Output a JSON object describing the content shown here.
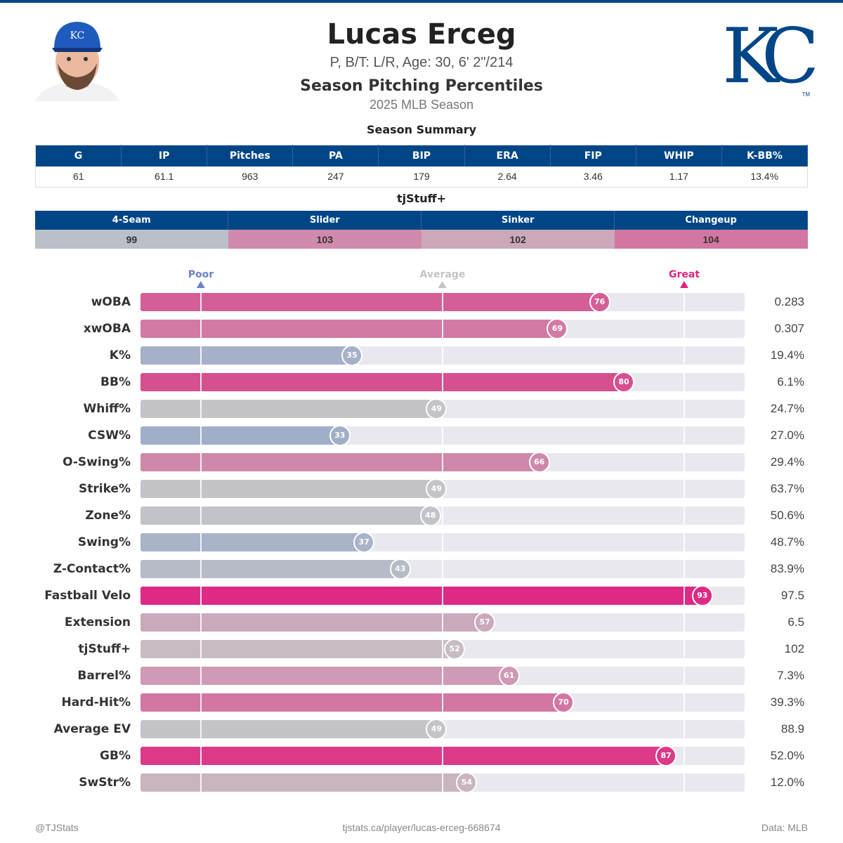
{
  "header": {
    "name": "Lucas Erceg",
    "bio": "P, B/T: L/R, Age: 30, 6' 2\"/214",
    "subtitle": "Season Pitching Percentiles",
    "season": "2025 MLB Season",
    "logo_text": "KC",
    "logo_tm": "TM"
  },
  "summary": {
    "title": "Season Summary",
    "headers": [
      "G",
      "IP",
      "Pitches",
      "PA",
      "BIP",
      "ERA",
      "FIP",
      "WHIP",
      "K-BB%"
    ],
    "values": [
      "61",
      "61.1",
      "963",
      "247",
      "179",
      "2.64",
      "3.46",
      "1.17",
      "13.4%"
    ]
  },
  "tjstuff": {
    "title": "tjStuff+",
    "headers": [
      "4-Seam",
      "Slider",
      "Sinker",
      "Changeup"
    ],
    "values": [
      "99",
      "103",
      "102",
      "104"
    ],
    "colors": [
      "#babfc8",
      "#d08aab",
      "#cba8ba",
      "#d277a2"
    ]
  },
  "colors": {
    "header_blue": "#004687",
    "poor": "#6b84c4",
    "average": "#c4c4c4",
    "great": "#e0237f",
    "track": "#e8e8ee"
  },
  "chart_data": {
    "type": "bar",
    "orientation": "horizontal",
    "xlim": [
      0,
      100
    ],
    "markers": [
      {
        "label": "Poor",
        "value": 10
      },
      {
        "label": "Average",
        "value": 50
      },
      {
        "label": "Great",
        "value": 90
      }
    ],
    "rows": [
      {
        "label": "wOBA",
        "percentile": 76,
        "value": "0.283",
        "color": "#d45f97"
      },
      {
        "label": "xwOBA",
        "percentile": 69,
        "value": "0.307",
        "color": "#d27aa3"
      },
      {
        "label": "K%",
        "percentile": 35,
        "value": "19.4%",
        "color": "#a6b0c8"
      },
      {
        "label": "BB%",
        "percentile": 80,
        "value": "6.1%",
        "color": "#d64f8e"
      },
      {
        "label": "Whiff%",
        "percentile": 49,
        "value": "24.7%",
        "color": "#c4c4c8"
      },
      {
        "label": "CSW%",
        "percentile": 33,
        "value": "27.0%",
        "color": "#a0aec8"
      },
      {
        "label": "O-Swing%",
        "percentile": 66,
        "value": "29.4%",
        "color": "#d088aa"
      },
      {
        "label": "Strike%",
        "percentile": 49,
        "value": "63.7%",
        "color": "#c4c4c8"
      },
      {
        "label": "Zone%",
        "percentile": 48,
        "value": "50.6%",
        "color": "#c2c3c8"
      },
      {
        "label": "Swing%",
        "percentile": 37,
        "value": "48.7%",
        "color": "#a9b3c9"
      },
      {
        "label": "Z-Contact%",
        "percentile": 43,
        "value": "83.9%",
        "color": "#b7bbc8"
      },
      {
        "label": "Fastball Velo",
        "percentile": 93,
        "value": "97.5",
        "color": "#de2a84"
      },
      {
        "label": "Extension",
        "percentile": 57,
        "value": "6.5",
        "color": "#caa9ba"
      },
      {
        "label": "tjStuff+",
        "percentile": 52,
        "value": "102",
        "color": "#c8bcc2"
      },
      {
        "label": "Barrel%",
        "percentile": 61,
        "value": "7.3%",
        "color": "#cf9ab5"
      },
      {
        "label": "Hard-Hit%",
        "percentile": 70,
        "value": "39.3%",
        "color": "#d276a2"
      },
      {
        "label": "Average EV",
        "percentile": 49,
        "value": "88.9",
        "color": "#c4c4c8"
      },
      {
        "label": "GB%",
        "percentile": 87,
        "value": "52.0%",
        "color": "#dc3a89"
      },
      {
        "label": "SwStr%",
        "percentile": 54,
        "value": "12.0%",
        "color": "#c9b5bf"
      }
    ]
  },
  "footer": {
    "left": "@TJStats",
    "center": "tjstats.ca/player/lucas-erceg-668674",
    "right": "Data: MLB"
  }
}
